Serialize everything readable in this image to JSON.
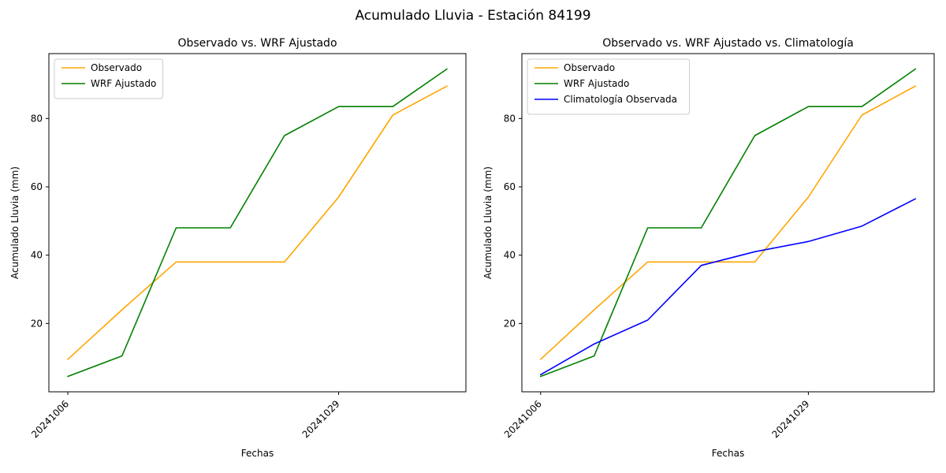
{
  "figure": {
    "suptitle": "Acumulado Lluvia - Estación 84199",
    "background": "#ffffff",
    "text_color": "#000000"
  },
  "chart_data": [
    {
      "type": "line",
      "title": "Observado vs. WRF Ajustado",
      "xlabel": "Fechas",
      "ylabel": "Acumulado Lluvia (mm)",
      "x": [
        0,
        1,
        2,
        3,
        4,
        5,
        6,
        7
      ],
      "xlim": [
        -0.35,
        7.35
      ],
      "ylim": [
        0,
        99
      ],
      "yticks": [
        20,
        40,
        60,
        80
      ],
      "xtick_positions": [
        0,
        5
      ],
      "xtick_labels": [
        "20241006",
        "20241029"
      ],
      "grid": false,
      "legend_position": "upper left",
      "series": [
        {
          "name": "Observado",
          "color": "#FFA500",
          "values": [
            9.5,
            24,
            38,
            38,
            38,
            57,
            81,
            89.5
          ]
        },
        {
          "name": "WRF Ajustado",
          "color": "#008000",
          "values": [
            4.5,
            10.5,
            48,
            48,
            75,
            83.5,
            83.5,
            94.5
          ]
        }
      ]
    },
    {
      "type": "line",
      "title": "Observado vs. WRF Ajustado vs. Climatología",
      "xlabel": "Fechas",
      "ylabel": "Acumulado Lluvia (mm)",
      "x": [
        0,
        1,
        2,
        3,
        4,
        5,
        6,
        7
      ],
      "xlim": [
        -0.35,
        7.35
      ],
      "ylim": [
        0,
        99
      ],
      "yticks": [
        20,
        40,
        60,
        80
      ],
      "xtick_positions": [
        0,
        5
      ],
      "xtick_labels": [
        "20241006",
        "20241029"
      ],
      "grid": false,
      "legend_position": "upper left",
      "series": [
        {
          "name": "Observado",
          "color": "#FFA500",
          "values": [
            9.5,
            24,
            38,
            38,
            38,
            57,
            81,
            89.5
          ]
        },
        {
          "name": "WRF Ajustado",
          "color": "#008000",
          "values": [
            4.5,
            10.5,
            48,
            48,
            75,
            83.5,
            83.5,
            94.5
          ]
        },
        {
          "name": "Climatología Observada",
          "color": "#0000FF",
          "values": [
            5,
            14,
            21,
            37,
            41,
            44,
            48.5,
            56.5
          ]
        }
      ]
    }
  ]
}
